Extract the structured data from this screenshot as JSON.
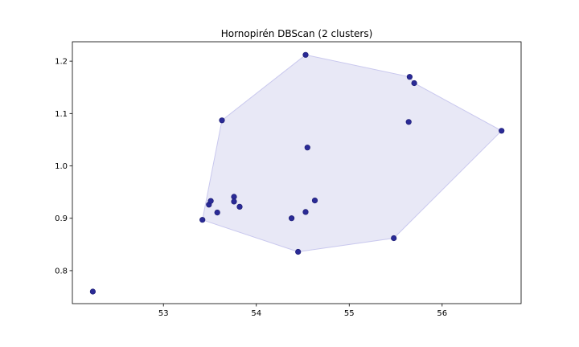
{
  "chart_data": {
    "type": "scatter",
    "title": "Hornopirén DBScan (2 clusters)",
    "xlabel": "",
    "ylabel": "",
    "xlim": [
      52.02,
      56.85
    ],
    "ylim": [
      0.737,
      1.237
    ],
    "xticks": [
      53,
      54,
      55,
      56
    ],
    "yticks": [
      0.8,
      0.9,
      1.0,
      1.1,
      1.2
    ],
    "xtick_labels": [
      "53",
      "54",
      "55",
      "56"
    ],
    "ytick_labels": [
      "0.8",
      "0.9",
      "1.0",
      "1.1",
      "1.2"
    ],
    "grid": false,
    "colors": {
      "point": "#2a2a96",
      "point_edge": "#1a1a70",
      "hull_fill": "#e6e5f5",
      "hull_edge": "#c9c8ee"
    },
    "points": [
      {
        "x": 52.24,
        "y": 0.76
      },
      {
        "x": 53.42,
        "y": 0.897
      },
      {
        "x": 53.49,
        "y": 0.926
      },
      {
        "x": 53.51,
        "y": 0.933
      },
      {
        "x": 53.58,
        "y": 0.911
      },
      {
        "x": 53.63,
        "y": 1.087
      },
      {
        "x": 53.76,
        "y": 0.941
      },
      {
        "x": 53.76,
        "y": 0.932
      },
      {
        "x": 53.82,
        "y": 0.922
      },
      {
        "x": 54.38,
        "y": 0.9
      },
      {
        "x": 54.45,
        "y": 0.836
      },
      {
        "x": 54.53,
        "y": 0.912
      },
      {
        "x": 54.53,
        "y": 1.212
      },
      {
        "x": 54.55,
        "y": 1.035
      },
      {
        "x": 54.63,
        "y": 0.934
      },
      {
        "x": 55.48,
        "y": 0.862
      },
      {
        "x": 55.64,
        "y": 1.084
      },
      {
        "x": 55.65,
        "y": 1.17
      },
      {
        "x": 55.7,
        "y": 1.158
      },
      {
        "x": 56.64,
        "y": 1.067
      }
    ],
    "hull": [
      {
        "x": 54.53,
        "y": 1.212
      },
      {
        "x": 55.65,
        "y": 1.17
      },
      {
        "x": 55.7,
        "y": 1.158
      },
      {
        "x": 56.64,
        "y": 1.067
      },
      {
        "x": 55.48,
        "y": 0.862
      },
      {
        "x": 54.45,
        "y": 0.836
      },
      {
        "x": 53.42,
        "y": 0.897
      },
      {
        "x": 53.63,
        "y": 1.087
      }
    ]
  }
}
